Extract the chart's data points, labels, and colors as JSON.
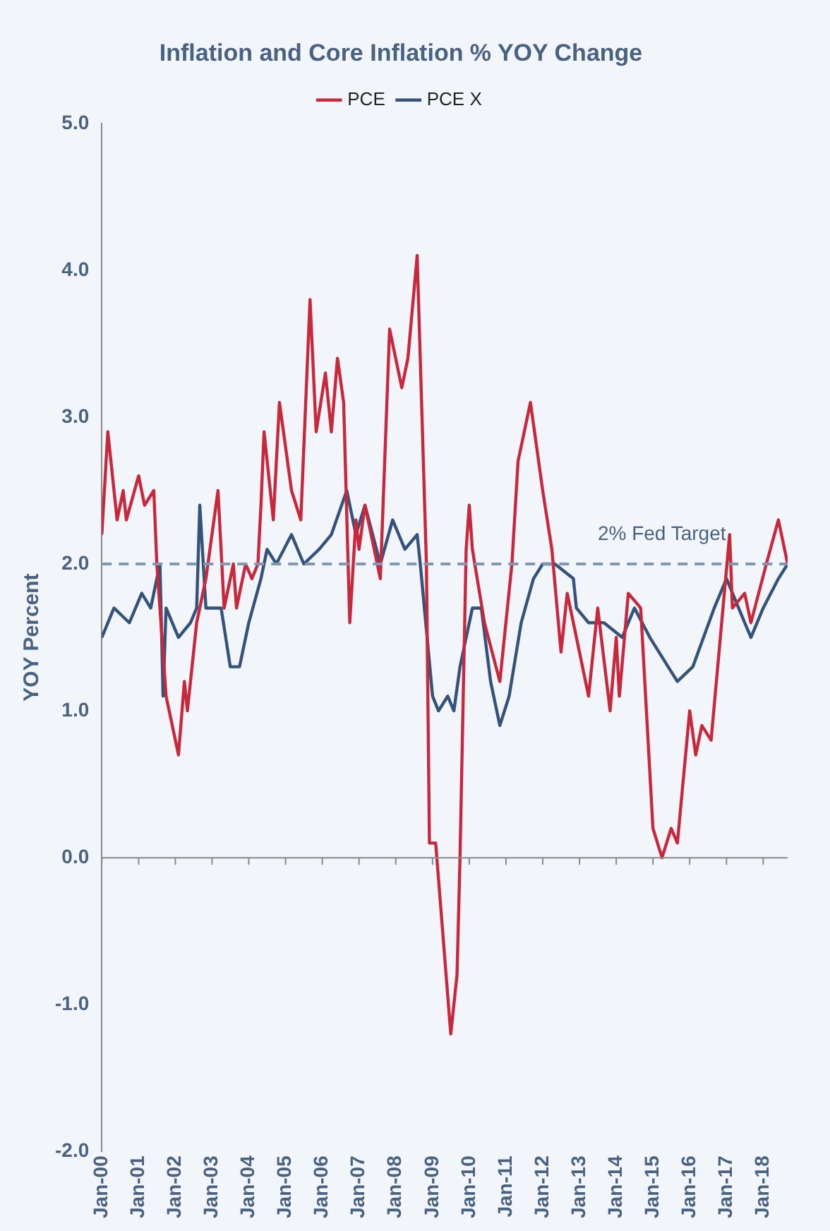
{
  "chart_data": {
    "type": "line",
    "title": "Inflation and Core Inflation % YOY Change",
    "ylabel": "YOY Percent",
    "xlim": [
      "2000-01",
      "2018-09"
    ],
    "xticks": [
      {
        "value": "2000-01",
        "label": "Jan-00"
      },
      {
        "value": "2001-01",
        "label": "Jan-01"
      },
      {
        "value": "2002-01",
        "label": "Jan-02"
      },
      {
        "value": "2003-01",
        "label": "Jan-03"
      },
      {
        "value": "2004-01",
        "label": "Jan-04"
      },
      {
        "value": "2005-01",
        "label": "Jan-05"
      },
      {
        "value": "2006-01",
        "label": "Jan-06"
      },
      {
        "value": "2007-01",
        "label": "Jan-07"
      },
      {
        "value": "2008-01",
        "label": "Jan-08"
      },
      {
        "value": "2009-01",
        "label": "Jan-09"
      },
      {
        "value": "2010-01",
        "label": "Jan-10"
      },
      {
        "value": "2011-01",
        "label": "Jan-11"
      },
      {
        "value": "2012-01",
        "label": "Jan-12"
      },
      {
        "value": "2013-01",
        "label": "Jan-13"
      },
      {
        "value": "2014-01",
        "label": "Jan-14"
      },
      {
        "value": "2015-01",
        "label": "Jan-15"
      },
      {
        "value": "2016-01",
        "label": "Jan-16"
      },
      {
        "value": "2017-01",
        "label": "Jan-17"
      },
      {
        "value": "2018-01",
        "label": "Jan-18"
      }
    ],
    "ylim": [
      -2,
      5
    ],
    "yticks": [
      {
        "value": -2,
        "label": "-2.0"
      },
      {
        "value": -1,
        "label": "-1.0"
      },
      {
        "value": 0,
        "label": "0.0"
      },
      {
        "value": 1,
        "label": "1.0"
      },
      {
        "value": 2,
        "label": "2.0"
      },
      {
        "value": 3,
        "label": "3.0"
      },
      {
        "value": 4,
        "label": "4.0"
      },
      {
        "value": 5,
        "label": "5.0"
      }
    ],
    "series": [
      {
        "name": "PCE",
        "color": "#c8283c",
        "x": [
          "2000-01",
          "2000-03",
          "2000-06",
          "2000-08",
          "2000-09",
          "2001-01",
          "2001-03",
          "2001-06",
          "2001-07",
          "2001-10",
          "2002-02",
          "2002-04",
          "2002-05",
          "2002-08",
          "2002-11",
          "2003-03",
          "2003-05",
          "2003-08",
          "2003-09",
          "2003-12",
          "2004-02",
          "2004-04",
          "2004-05",
          "2004-06",
          "2004-09",
          "2004-11",
          "2005-03",
          "2005-06",
          "2005-09",
          "2005-11",
          "2006-02",
          "2006-04",
          "2006-06",
          "2006-08",
          "2006-10",
          "2006-12",
          "2007-01",
          "2007-03",
          "2007-08",
          "2007-11",
          "2008-03",
          "2008-05",
          "2008-08",
          "2008-11",
          "2008-12",
          "2009-02",
          "2009-07",
          "2009-09",
          "2009-10",
          "2009-12",
          "2010-01",
          "2010-02",
          "2010-06",
          "2010-11",
          "2011-03",
          "2011-05",
          "2011-09",
          "2011-11",
          "2012-01",
          "2012-04",
          "2012-07",
          "2012-09",
          "2012-12",
          "2013-04",
          "2013-07",
          "2013-11",
          "2014-01",
          "2014-02",
          "2014-05",
          "2014-09",
          "2015-01",
          "2015-04",
          "2015-07",
          "2015-09",
          "2016-01",
          "2016-03",
          "2016-05",
          "2016-08",
          "2016-11",
          "2017-02",
          "2017-03",
          "2017-07",
          "2017-09",
          "2018-02",
          "2018-06",
          "2018-09"
        ],
        "values": [
          2.2,
          2.9,
          2.3,
          2.5,
          2.3,
          2.6,
          2.4,
          2.5,
          2.0,
          1.1,
          0.7,
          1.2,
          1.0,
          1.6,
          1.9,
          2.5,
          1.7,
          2.0,
          1.7,
          2.0,
          1.9,
          2.0,
          2.4,
          2.9,
          2.3,
          3.1,
          2.5,
          2.3,
          3.8,
          2.9,
          3.3,
          2.9,
          3.4,
          3.1,
          1.6,
          2.3,
          2.1,
          2.4,
          1.9,
          3.6,
          3.2,
          3.4,
          4.1,
          2.0,
          0.1,
          0.1,
          -1.2,
          -0.8,
          0.0,
          2.1,
          2.4,
          2.1,
          1.6,
          1.2,
          2.0,
          2.7,
          3.1,
          2.8,
          2.5,
          2.1,
          1.4,
          1.8,
          1.5,
          1.1,
          1.7,
          1.0,
          1.5,
          1.1,
          1.8,
          1.7,
          0.2,
          0.0,
          0.2,
          0.1,
          1.0,
          0.7,
          0.9,
          0.8,
          1.5,
          2.2,
          1.7,
          1.8,
          1.6,
          2.0,
          2.3,
          2.0
        ]
      },
      {
        "name": "PCE X",
        "color": "#34527a",
        "x": [
          "2000-01",
          "2000-05",
          "2000-10",
          "2001-02",
          "2001-05",
          "2001-08",
          "2001-09",
          "2001-10",
          "2002-02",
          "2002-06",
          "2002-08",
          "2002-09",
          "2002-11",
          "2003-04",
          "2003-07",
          "2003-10",
          "2004-01",
          "2004-05",
          "2004-07",
          "2004-10",
          "2005-03",
          "2005-07",
          "2005-12",
          "2006-04",
          "2006-09",
          "2006-12",
          "2007-03",
          "2007-08",
          "2007-12",
          "2008-04",
          "2008-08",
          "2008-09",
          "2009-01",
          "2009-03",
          "2009-06",
          "2009-08",
          "2009-10",
          "2010-02",
          "2010-05",
          "2010-08",
          "2010-11",
          "2011-02",
          "2011-06",
          "2011-10",
          "2012-01",
          "2012-05",
          "2012-11",
          "2012-12",
          "2013-04",
          "2013-09",
          "2014-03",
          "2014-07",
          "2014-12",
          "2015-06",
          "2015-09",
          "2016-02",
          "2016-09",
          "2017-01",
          "2017-07",
          "2017-09",
          "2018-01",
          "2018-06",
          "2018-09"
        ],
        "values": [
          1.5,
          1.7,
          1.6,
          1.8,
          1.7,
          2.0,
          1.1,
          1.7,
          1.5,
          1.6,
          1.7,
          2.4,
          1.7,
          1.7,
          1.3,
          1.3,
          1.6,
          1.9,
          2.1,
          2.0,
          2.2,
          2.0,
          2.1,
          2.2,
          2.5,
          2.2,
          2.4,
          2.0,
          2.3,
          2.1,
          2.2,
          2.0,
          1.1,
          1.0,
          1.1,
          1.0,
          1.3,
          1.7,
          1.7,
          1.2,
          0.9,
          1.1,
          1.6,
          1.9,
          2.0,
          2.0,
          1.9,
          1.7,
          1.6,
          1.6,
          1.5,
          1.7,
          1.5,
          1.3,
          1.2,
          1.3,
          1.7,
          1.9,
          1.6,
          1.5,
          1.7,
          1.9,
          2.0
        ]
      }
    ],
    "ref_lines": [
      {
        "axis": "y",
        "value": 2,
        "label": "2% Fed Target",
        "color": "#7f97b2",
        "line_style": "dashed"
      }
    ],
    "legend": "top",
    "grid": false,
    "marker": "none",
    "line_style": "solid"
  }
}
